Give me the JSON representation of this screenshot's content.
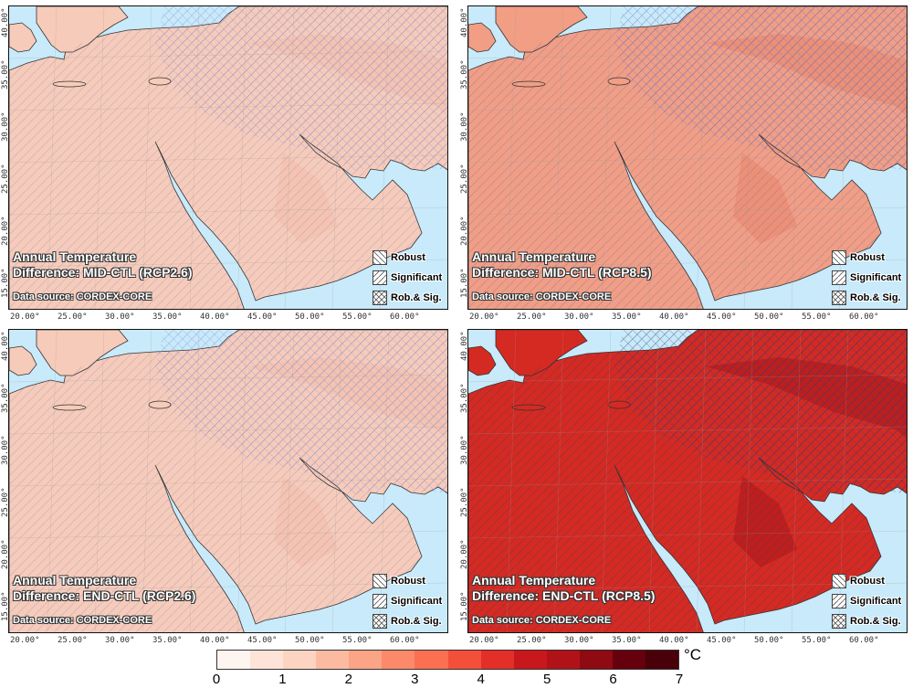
{
  "panels": [
    {
      "id": "p1",
      "title_line1": "Annual Temperature",
      "title_line2": "Difference: MID-CTL (RCP2.6)",
      "source": "Data source: CORDEX-CORE",
      "fill": "#f7cbb9",
      "fill2": "#f4c1ae",
      "hatch": "#8a8fd0"
    },
    {
      "id": "p2",
      "title_line1": "Annual Temperature",
      "title_line2": "Difference: MID-CTL (RCP8.5)",
      "source": "Data source: CORDEX-CORE",
      "fill": "#f19e85",
      "fill2": "#ec8c72",
      "hatch": "#6b6fb8"
    },
    {
      "id": "p3",
      "title_line1": "Annual Temperature",
      "title_line2": "Difference: END-CTL (RCP2.6)",
      "source": "Data source: CORDEX-CORE",
      "fill": "#f7cbb9",
      "fill2": "#f4c1ae",
      "hatch": "#8a8fd0"
    },
    {
      "id": "p4",
      "title_line1": "Annual Temperature",
      "title_line2": "Difference: END-CTL (RCP8.5)",
      "source": "Data source: CORDEX-CORE",
      "fill": "#d42a22",
      "fill2": "#b81b1b",
      "hatch": "#3a3a70"
    }
  ],
  "legend": {
    "robust": "Robust",
    "significant": "Significant",
    "both": "Rob.& Sig."
  },
  "lat_labels": [
    "15.00°",
    "20.00°",
    "25.00°",
    "30.00°",
    "35.00°",
    "40.00°"
  ],
  "lon_labels": [
    "20.00°",
    "25.00°",
    "30.00°",
    "35.00°",
    "40.00°",
    "45.00°",
    "50.00°",
    "55.00°",
    "60.00°"
  ],
  "colorbar": {
    "unit": "°C",
    "ticks": [
      "0",
      "1",
      "2",
      "3",
      "4",
      "5",
      "6",
      "7"
    ],
    "colors": [
      "#fff5f0",
      "#fee4d8",
      "#fdd4c2",
      "#fcbba1",
      "#fca486",
      "#fc8a6a",
      "#fb7050",
      "#f44f39",
      "#e32f27",
      "#c9181d",
      "#b11218",
      "#8f0a12",
      "#67000d",
      "#4a0008"
    ]
  },
  "colors": {
    "sea": "#c8eafa"
  }
}
